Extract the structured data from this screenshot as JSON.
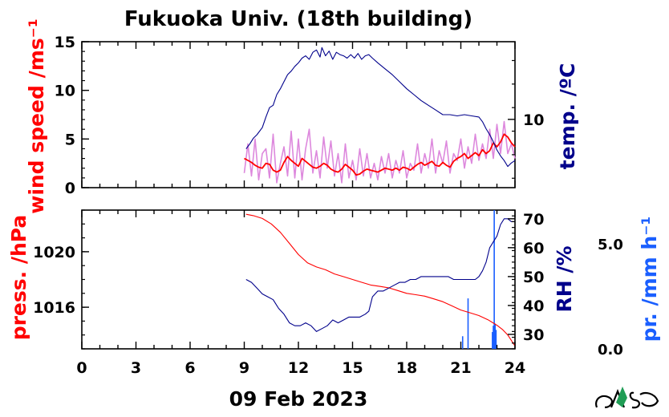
{
  "chart_data": [
    {
      "type": "line",
      "title": "Fukuoka Univ. (18th building)",
      "xlabel": "09 Feb 2023",
      "x_ticks": [
        "0",
        "3",
        "6",
        "9",
        "12",
        "15",
        "18",
        "21",
        "24"
      ],
      "xlim": [
        0,
        24
      ],
      "left_axis": {
        "label": "wind speed /ms⁻¹",
        "ylim": [
          0,
          15
        ],
        "ticks": [
          "0",
          "5",
          "10",
          "15"
        ],
        "color": "#ff0000"
      },
      "right_axis": {
        "label": "temp. /ºC",
        "ylim": [
          4.2,
          16.6
        ],
        "ticks": [
          "10"
        ],
        "color": "#00008b"
      },
      "series": [
        {
          "key": "wind_gust",
          "axis": "left",
          "color": "#dd88dd",
          "x": [
            9.0,
            9.2,
            9.4,
            9.6,
            9.8,
            10.0,
            10.2,
            10.4,
            10.6,
            10.8,
            11.0,
            11.2,
            11.4,
            11.6,
            11.8,
            12.0,
            12.2,
            12.4,
            12.6,
            12.8,
            13.0,
            13.2,
            13.4,
            13.6,
            13.8,
            14.0,
            14.2,
            14.4,
            14.6,
            14.8,
            15.0,
            15.2,
            15.4,
            15.6,
            15.8,
            16.0,
            16.2,
            16.4,
            16.6,
            16.8,
            17.0,
            17.2,
            17.4,
            17.6,
            17.8,
            18.0,
            18.2,
            18.4,
            18.6,
            18.8,
            19.0,
            19.2,
            19.4,
            19.6,
            19.8,
            20.0,
            20.2,
            20.4,
            20.6,
            20.8,
            21.0,
            21.2,
            21.4,
            21.6,
            21.8,
            22.0,
            22.2,
            22.4,
            22.6,
            22.8,
            23.0,
            23.2,
            23.4,
            23.6,
            23.8,
            24.0
          ],
          "y": [
            1.5,
            4.5,
            1.2,
            5.0,
            0.8,
            3.5,
            4.0,
            1.0,
            5.5,
            0.5,
            2.5,
            4.2,
            1.2,
            5.8,
            1.0,
            5.0,
            0.8,
            4.0,
            6.0,
            1.5,
            3.8,
            1.0,
            5.2,
            2.0,
            4.8,
            1.2,
            3.5,
            0.5,
            4.5,
            1.0,
            2.8,
            0.8,
            4.0,
            1.2,
            3.5,
            1.0,
            2.5,
            0.8,
            3.2,
            1.5,
            3.5,
            1.0,
            2.8,
            1.5,
            3.8,
            1.0,
            2.5,
            1.8,
            4.5,
            1.5,
            3.5,
            2.0,
            5.0,
            1.5,
            3.8,
            2.5,
            4.8,
            1.5,
            3.5,
            2.8,
            5.0,
            2.0,
            4.2,
            2.5,
            5.5,
            2.8,
            4.5,
            3.0,
            6.0,
            3.0,
            6.5,
            3.5,
            6.8,
            3.5,
            4.5,
            3.0
          ]
        },
        {
          "key": "wind_mean",
          "axis": "left",
          "color": "#ff0000",
          "x": [
            9.0,
            9.2,
            9.4,
            9.6,
            9.8,
            10.0,
            10.2,
            10.4,
            10.6,
            10.8,
            11.0,
            11.2,
            11.4,
            11.6,
            11.8,
            12.0,
            12.2,
            12.4,
            12.6,
            12.8,
            13.0,
            13.2,
            13.4,
            13.6,
            13.8,
            14.0,
            14.2,
            14.4,
            14.6,
            14.8,
            15.0,
            15.2,
            15.4,
            15.6,
            15.8,
            16.0,
            16.2,
            16.4,
            16.6,
            16.8,
            17.0,
            17.2,
            17.4,
            17.6,
            17.8,
            18.0,
            18.2,
            18.4,
            18.6,
            18.8,
            19.0,
            19.2,
            19.4,
            19.6,
            19.8,
            20.0,
            20.2,
            20.4,
            20.6,
            20.8,
            21.0,
            21.2,
            21.4,
            21.6,
            21.8,
            22.0,
            22.2,
            22.4,
            22.6,
            22.8,
            23.0,
            23.2,
            23.4,
            23.6,
            23.8,
            24.0
          ],
          "y": [
            3.0,
            2.8,
            2.6,
            2.3,
            2.1,
            2.0,
            2.5,
            2.4,
            1.8,
            1.6,
            1.8,
            2.6,
            3.2,
            2.8,
            2.5,
            2.2,
            3.0,
            2.7,
            2.4,
            2.1,
            2.0,
            2.2,
            2.5,
            2.3,
            1.9,
            1.7,
            1.6,
            1.9,
            2.4,
            2.1,
            1.8,
            1.3,
            1.4,
            1.7,
            1.9,
            1.8,
            1.7,
            1.6,
            1.8,
            2.0,
            1.9,
            1.8,
            2.0,
            1.8,
            2.1,
            2.0,
            1.8,
            2.1,
            2.4,
            2.6,
            2.3,
            2.5,
            2.7,
            2.3,
            2.2,
            2.6,
            2.3,
            2.1,
            2.7,
            3.0,
            3.2,
            3.5,
            3.0,
            3.3,
            3.6,
            3.3,
            3.9,
            3.5,
            3.8,
            4.6,
            4.2,
            4.7,
            5.5,
            5.2,
            4.6,
            4.2
          ]
        },
        {
          "key": "temperature",
          "axis": "right",
          "color": "#00008b",
          "x": [
            9.1,
            9.3,
            9.5,
            9.7,
            10.0,
            10.2,
            10.4,
            10.6,
            10.8,
            11.0,
            11.2,
            11.4,
            11.6,
            11.8,
            12.0,
            12.2,
            12.4,
            12.6,
            12.8,
            13.0,
            13.2,
            13.3,
            13.5,
            13.7,
            13.9,
            14.1,
            14.3,
            14.5,
            14.7,
            14.9,
            15.1,
            15.3,
            15.5,
            15.7,
            15.9,
            16.1,
            16.4,
            16.8,
            17.2,
            17.6,
            18.0,
            18.4,
            18.8,
            19.2,
            19.6,
            20.0,
            20.4,
            20.8,
            21.2,
            21.6,
            22.0,
            22.2,
            22.4,
            22.6,
            22.8,
            23.0,
            23.2,
            23.4,
            23.6,
            23.8,
            24.0
          ],
          "y": [
            7.5,
            7.9,
            8.4,
            8.7,
            9.3,
            10.2,
            11.0,
            11.2,
            12.1,
            12.6,
            13.2,
            13.8,
            14.1,
            14.5,
            14.8,
            15.2,
            15.4,
            15.1,
            15.7,
            15.9,
            15.3,
            16.1,
            15.4,
            15.8,
            15.1,
            15.7,
            15.5,
            15.4,
            15.2,
            15.5,
            15.2,
            15.6,
            15.1,
            15.4,
            15.5,
            15.2,
            14.8,
            14.3,
            13.8,
            13.2,
            12.6,
            12.1,
            11.6,
            11.2,
            10.8,
            10.4,
            10.4,
            10.3,
            10.4,
            10.3,
            10.2,
            9.8,
            9.2,
            8.7,
            8.1,
            7.4,
            6.9,
            6.5,
            6.0,
            6.3,
            6.5
          ]
        }
      ]
    },
    {
      "type": "line",
      "xlabel": "09 Feb 2023",
      "x_ticks": [
        "0",
        "3",
        "6",
        "9",
        "12",
        "15",
        "18",
        "21",
        "24"
      ],
      "xlim": [
        0,
        24
      ],
      "left_axis": {
        "label": "press. /hPa",
        "ylim": [
          1013.0,
          1023.0
        ],
        "ticks": [
          "1016",
          "1020"
        ],
        "color": "#ff0000"
      },
      "right_axis": {
        "label": "RH /%",
        "ylim": [
          25,
          73
        ],
        "ticks": [
          "30",
          "40",
          "50",
          "60",
          "70"
        ],
        "color": "#00008b"
      },
      "far_right_axis": {
        "label": "pr. /mm h⁻¹",
        "ylim": [
          0,
          6.6
        ],
        "ticks": [
          "0.0",
          "5.0"
        ],
        "color": "#1a5fff"
      },
      "series": [
        {
          "key": "pressure",
          "axis": "left",
          "color": "#ff0000",
          "x": [
            9.1,
            9.5,
            10.0,
            10.5,
            11.0,
            11.5,
            12.0,
            12.5,
            13.0,
            13.5,
            14.0,
            14.5,
            15.0,
            15.5,
            16.0,
            16.5,
            17.0,
            17.5,
            18.0,
            18.5,
            19.0,
            19.5,
            20.0,
            20.5,
            21.0,
            21.5,
            22.0,
            22.5,
            23.0,
            23.3,
            23.6,
            23.8,
            24.0
          ],
          "y": [
            1022.7,
            1022.6,
            1022.4,
            1022.0,
            1021.4,
            1020.6,
            1019.8,
            1019.2,
            1018.9,
            1018.7,
            1018.4,
            1018.2,
            1018.0,
            1017.8,
            1017.6,
            1017.5,
            1017.4,
            1017.2,
            1017.0,
            1016.9,
            1016.8,
            1016.6,
            1016.4,
            1016.1,
            1015.8,
            1015.6,
            1015.4,
            1015.1,
            1014.7,
            1014.4,
            1014.0,
            1013.6,
            1013.2
          ]
        },
        {
          "key": "relative_humidity",
          "axis": "right",
          "color": "#00008b",
          "x": [
            9.1,
            9.4,
            9.7,
            10.0,
            10.3,
            10.6,
            10.9,
            11.2,
            11.5,
            11.8,
            12.1,
            12.4,
            12.7,
            13.0,
            13.3,
            13.6,
            13.9,
            14.2,
            14.5,
            14.8,
            15.1,
            15.4,
            15.7,
            15.9,
            16.1,
            16.4,
            16.7,
            17.0,
            17.3,
            17.6,
            17.9,
            18.2,
            18.5,
            18.8,
            19.1,
            19.4,
            19.7,
            20.0,
            20.3,
            20.6,
            20.9,
            21.2,
            21.5,
            21.8,
            22.0,
            22.2,
            22.4,
            22.6,
            22.8,
            23.0,
            23.2,
            23.4,
            23.6,
            23.8,
            24.0
          ],
          "y": [
            49,
            48,
            46,
            44,
            43,
            42,
            39,
            37,
            34,
            33,
            33,
            34,
            33,
            31,
            32,
            33,
            35,
            34,
            35,
            36,
            36,
            36,
            37,
            38,
            43,
            45,
            45,
            46,
            47,
            48,
            48,
            49,
            49,
            50,
            50,
            50,
            50,
            50,
            50,
            49,
            49,
            49,
            49,
            49,
            50,
            52,
            55,
            60,
            62,
            64,
            68,
            70,
            70,
            69,
            69
          ]
        },
        {
          "key": "precipitation",
          "axis": "far_right",
          "type": "bar",
          "color": "#1a5fff",
          "x": [
            21.1,
            21.4,
            22.75,
            22.8,
            22.85,
            22.9,
            22.95
          ],
          "y": [
            0.6,
            2.4,
            0.8,
            1.1,
            6.6,
            1.2,
            0.9
          ]
        }
      ]
    }
  ]
}
